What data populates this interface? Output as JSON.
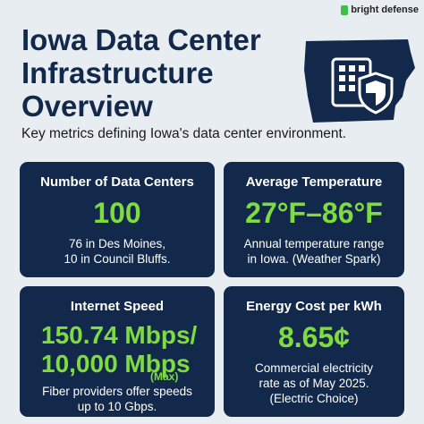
{
  "logo": "bright defense",
  "header": {
    "title": [
      "Iowa Data Center",
      "Infrastructure",
      "Overview"
    ],
    "subtitle": "Key metrics defining Iowa's data center environment."
  },
  "cards": [
    {
      "title": "Number of Data Centers",
      "value": [
        "100"
      ],
      "description": [
        "76 in Des Moines,",
        "10 in Council Bluffs."
      ]
    },
    {
      "title": "Average Temperature",
      "value": [
        "27°F–86°F"
      ],
      "description": [
        "Annual temperature range",
        "in Iowa. (Weather Spark)"
      ]
    },
    {
      "title": "Internet Speed",
      "value": [
        "150.74 Mbps/",
        "10,000 Mbps",
        "(Max)"
      ],
      "description": [
        "Fiber providers offer speeds",
        "up to 10 Gbps."
      ]
    },
    {
      "title": "Energy Cost per kWh",
      "value": [
        "8.65¢"
      ],
      "description": [
        "Commercial electricity",
        "rate as of May 2025.",
        "(Electric Choice)"
      ]
    }
  ]
}
